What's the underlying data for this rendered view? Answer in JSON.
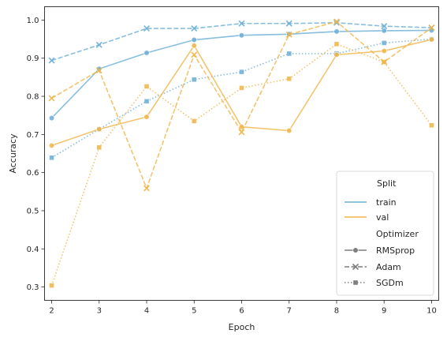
{
  "chart_data": {
    "type": "line",
    "xlabel": "Epoch",
    "ylabel": "Accuracy",
    "x": [
      2,
      3,
      4,
      5,
      6,
      7,
      8,
      9,
      10
    ],
    "xlim": [
      1.85,
      10.15
    ],
    "ylim": [
      0.265,
      1.035
    ],
    "xticks": [
      "2",
      "3",
      "4",
      "5",
      "6",
      "7",
      "8",
      "9",
      "10"
    ],
    "yticks": [
      "0.3",
      "0.4",
      "0.5",
      "0.6",
      "0.7",
      "0.8",
      "0.9",
      "1.0"
    ],
    "grid": false,
    "legend_position": "bottom-right",
    "colors": {
      "train": "#6aaed6",
      "val": "#f0b548"
    },
    "legend": {
      "hue_title": "Split",
      "hue_entries": [
        "train",
        "val"
      ],
      "style_title": "Optimizer",
      "style_entries": [
        "RMSprop",
        "Adam",
        "SGDm"
      ]
    },
    "series": [
      {
        "split": "train",
        "optimizer": "RMSprop",
        "dash": "solid",
        "marker": "circle",
        "values": [
          0.743,
          0.872,
          0.914,
          0.948,
          0.96,
          0.963,
          0.97,
          0.972,
          0.973
        ]
      },
      {
        "split": "train",
        "optimizer": "Adam",
        "dash": "dashed",
        "marker": "x",
        "values": [
          0.894,
          0.935,
          0.978,
          0.978,
          0.991,
          0.991,
          0.993,
          0.984,
          0.98
        ]
      },
      {
        "split": "train",
        "optimizer": "SGDm",
        "dash": "dotted",
        "marker": "square",
        "values": [
          0.639,
          0.714,
          0.787,
          0.844,
          0.864,
          0.912,
          0.912,
          0.94,
          0.95
        ]
      },
      {
        "split": "val",
        "optimizer": "RMSprop",
        "dash": "solid",
        "marker": "circle",
        "values": [
          0.671,
          0.714,
          0.746,
          0.933,
          0.72,
          0.71,
          0.909,
          0.919,
          0.949
        ]
      },
      {
        "split": "val",
        "optimizer": "Adam",
        "dash": "dashed",
        "marker": "x",
        "values": [
          0.795,
          0.868,
          0.559,
          0.909,
          0.706,
          0.962,
          0.996,
          0.89,
          0.98
        ]
      },
      {
        "split": "val",
        "optimizer": "SGDm",
        "dash": "dotted",
        "marker": "square",
        "values": [
          0.304,
          0.666,
          0.826,
          0.735,
          0.822,
          0.846,
          0.937,
          0.89,
          0.724
        ]
      }
    ]
  }
}
